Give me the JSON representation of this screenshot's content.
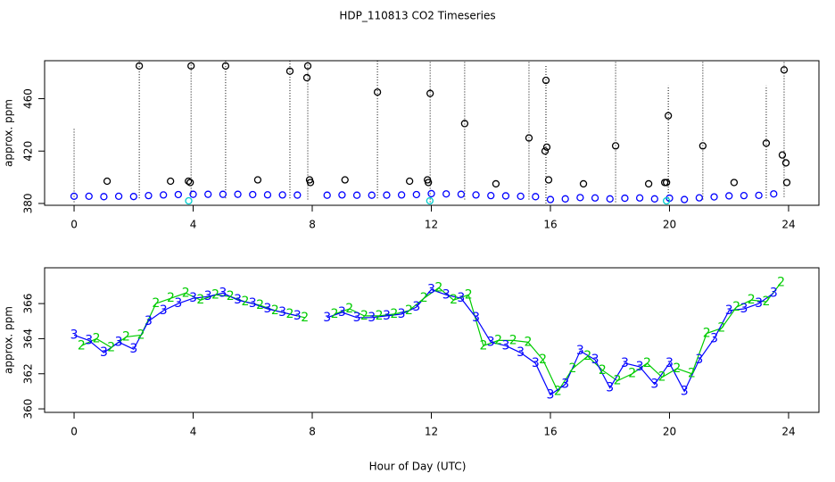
{
  "chart_data": [
    {
      "type": "scatter",
      "title": "HDP_110813  CO2 Timeseries",
      "ylabel": "approx. ppm",
      "xlim": [
        -0.99,
        25.02
      ],
      "ylim": [
        378.6,
        489
      ],
      "xticks": [
        0,
        4,
        8,
        12,
        16,
        20,
        24
      ],
      "yticks": [
        380,
        420,
        460
      ],
      "series": [
        {
          "color": "#0000ff",
          "x": [
            0,
            0.5,
            1,
            1.5,
            2,
            2.5,
            3,
            3.5,
            4,
            4.5,
            5,
            5.5,
            6,
            6.5,
            7,
            7.5,
            8,
            8.5,
            9,
            9.5,
            10,
            10.5,
            11,
            11.5,
            12,
            12.5,
            13,
            13.5,
            14,
            14.5,
            15,
            15.5,
            16,
            16.5,
            17,
            17.5,
            18,
            18.5,
            19,
            19.5,
            20,
            20.5,
            21,
            21.5,
            22,
            22.5,
            23,
            23.5
          ],
          "values": [
            385.5,
            385.5,
            385.2,
            385.5,
            385.3,
            386,
            386.5,
            386.8,
            387,
            387,
            387,
            387,
            386.8,
            386.6,
            386.5,
            386.4,
            null,
            386.3,
            386.5,
            386.3,
            386.3,
            386.4,
            386.5,
            386.8,
            387.5,
            387.3,
            387,
            386.5,
            386,
            385.8,
            385.5,
            385.2,
            383,
            383.5,
            384.5,
            384.2,
            383.5,
            384,
            384.2,
            383.5,
            384,
            383,
            384.3,
            385,
            385.8,
            386,
            386.2,
            387.3
          ]
        },
        {
          "color": "#00cccc",
          "x": [
            3.85,
            11.95,
            19.9
          ],
          "values": [
            382,
            382,
            382
          ]
        },
        {
          "color": "#000000",
          "x": [
            1.11,
            2.19,
            3.24,
            3.84,
            3.9,
            3.93,
            5.09,
            6.17,
            7.25,
            7.82,
            7.85,
            7.91,
            7.94,
            9.1,
            10.19,
            11.27,
            11.87,
            11.9,
            11.96,
            13.12,
            14.17,
            15.28,
            15.82,
            15.85,
            15.88,
            15.94,
            17.11,
            18.19,
            19.3,
            19.84,
            19.9,
            19.96,
            21.12,
            22.17,
            23.25,
            23.79,
            23.85,
            23.91,
            23.94
          ],
          "values": [
            397,
            485,
            397,
            397,
            396,
            485,
            485,
            398,
            481,
            476,
            485,
            398,
            396,
            398,
            465,
            397,
            398,
            396,
            464,
            441,
            395,
            430,
            420,
            474,
            423,
            398,
            395,
            424,
            395,
            396,
            396,
            447,
            424,
            396,
            426,
            417,
            482,
            411,
            396
          ]
        }
      ],
      "spikes": {
        "color": "#000000",
        "x": [
          0,
          2.19,
          3.93,
          5.09,
          7.25,
          7.85,
          10.19,
          11.96,
          13.12,
          15.28,
          15.85,
          18.19,
          19.96,
          21.12,
          23.25,
          23.85
        ],
        "low": [
          381,
          384,
          383,
          384,
          384,
          383,
          384,
          381,
          383,
          383,
          380,
          381,
          380,
          383,
          384,
          385
        ],
        "high": [
          438,
          489,
          489,
          489,
          489,
          489,
          489,
          489,
          489,
          489,
          485,
          489,
          470,
          489,
          470,
          489
        ]
      }
    },
    {
      "type": "line",
      "ylabel": "approx. ppm",
      "xlabel": "Hour of Day (UTC)",
      "xlim": [
        -0.99,
        25.02
      ],
      "ylim": [
        359.8,
        368.04
      ],
      "xticks": [
        0,
        4,
        8,
        12,
        16,
        20,
        24
      ],
      "yticks": [
        360,
        362,
        364,
        366
      ],
      "series": [
        {
          "marker": "2",
          "color": "#00cc00",
          "x": [
            0.25,
            0.75,
            1.25,
            1.75,
            2.25,
            2.75,
            3.25,
            3.75,
            4.25,
            4.75,
            5.25,
            5.75,
            6.25,
            6.75,
            7.25,
            7.75,
            8.25,
            8.75,
            9.25,
            9.75,
            10.25,
            10.75,
            11.25,
            11.75,
            12.25,
            12.75,
            13.25,
            13.75,
            14.25,
            14.75,
            15.25,
            15.75,
            16.25,
            16.75,
            17.25,
            17.75,
            18.25,
            18.75,
            19.25,
            19.75,
            20.25,
            20.75,
            21.25,
            21.75,
            22.25,
            22.75,
            23.25,
            23.75
          ],
          "values": [
            363.6,
            364.0,
            363.5,
            364.1,
            364.2,
            366.0,
            366.3,
            366.6,
            366.2,
            366.5,
            366.4,
            366.1,
            365.9,
            365.6,
            365.4,
            365.2,
            null,
            365.4,
            365.7,
            365.3,
            365.3,
            365.4,
            365.6,
            366.3,
            366.9,
            366.2,
            366.5,
            363.6,
            363.9,
            363.9,
            363.8,
            362.8,
            361.0,
            362.3,
            363.0,
            362.2,
            361.6,
            362.0,
            362.6,
            361.8,
            362.3,
            362.0,
            364.3,
            364.6,
            365.8,
            366.2,
            366.1,
            367.2
          ]
        },
        {
          "marker": "3",
          "color": "#0000ff",
          "x": [
            0,
            0.5,
            1,
            1.5,
            2,
            2.5,
            3,
            3.5,
            4,
            4.5,
            5,
            5.5,
            6,
            6.5,
            7,
            7.5,
            8,
            8.5,
            9,
            9.5,
            10,
            10.5,
            11,
            11.5,
            12,
            12.5,
            13,
            13.5,
            14,
            14.5,
            15,
            15.5,
            16,
            16.5,
            17,
            17.5,
            18,
            18.5,
            19,
            19.5,
            20,
            20.5,
            21,
            21.5,
            22,
            22.5,
            23,
            23.5
          ],
          "values": [
            364.2,
            363.9,
            363.2,
            363.8,
            363.4,
            365.0,
            365.6,
            366.0,
            366.3,
            366.4,
            366.6,
            366.2,
            366.0,
            365.7,
            365.5,
            365.3,
            null,
            365.2,
            365.5,
            365.2,
            365.2,
            365.3,
            365.4,
            365.8,
            366.8,
            366.5,
            366.3,
            365.2,
            363.8,
            363.6,
            363.2,
            362.6,
            360.8,
            361.4,
            363.3,
            362.8,
            361.2,
            362.6,
            362.4,
            361.4,
            362.6,
            361.0,
            362.8,
            364.0,
            365.6,
            365.7,
            366.0,
            366.6
          ]
        }
      ]
    }
  ]
}
